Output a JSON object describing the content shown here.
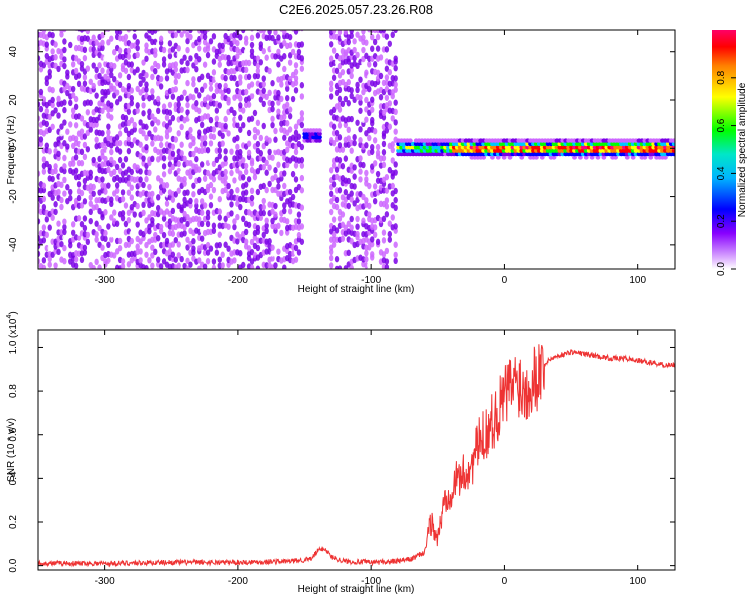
{
  "page": {
    "title": "C2E6.2025.057.23.26.R08"
  },
  "chart_data": [
    {
      "type": "heatmap",
      "xlabel": "Height of straight line (km)",
      "ylabel": "Frequency (Hz)",
      "xlim": [
        -350,
        128
      ],
      "ylim": [
        -50,
        49
      ],
      "xticks": [
        -300,
        -200,
        -100,
        0,
        100
      ],
      "yticks": [
        -40,
        -20,
        0,
        20,
        40
      ],
      "colorbar": {
        "label": "Normalized spectral amplitude",
        "range": [
          0.0,
          1.0
        ],
        "ticks": [
          0.0,
          0.2,
          0.4,
          0.6,
          0.8
        ],
        "colormap": "rainbow",
        "colors": [
          "#ffffff",
          "#cc66ff",
          "#7a00e6",
          "#0000ff",
          "#00c8ff",
          "#00ff00",
          "#ffff00",
          "#ff8000",
          "#ff0000",
          "#ff0080"
        ]
      },
      "regions": [
        {
          "x": [
            -350,
            -150
          ],
          "description_level": 0.1
        },
        {
          "x": [
            -150,
            -138
          ],
          "peak_freq": 5,
          "level": 0.35
        },
        {
          "x": [
            -132,
            -80
          ],
          "description_level": 0.1
        },
        {
          "x": [
            -80,
            -40
          ],
          "peak_freq": 0,
          "level": 0.6
        },
        {
          "x": [
            -40,
            128
          ],
          "peak_freq": 0,
          "level": 0.9
        }
      ],
      "grid": false
    },
    {
      "type": "line",
      "xlabel": "Height of straight line (km)",
      "ylabel": "SNR (10 * v/v)",
      "yscale_label": "(x10",
      "yscale_exp": "4",
      "xlim": [
        -350,
        128
      ],
      "ylim": [
        -0.02,
        1.08
      ],
      "xticks": [
        -300,
        -200,
        -100,
        0,
        100
      ],
      "yticks": [
        0.0,
        0.2,
        0.4,
        0.6,
        0.8,
        1.0
      ],
      "color": "#ee3333",
      "series": [
        {
          "x": [
            -350,
            -300,
            -250,
            -200,
            -160,
            -145,
            -140,
            -135,
            -130,
            -120,
            -100,
            -80,
            -70,
            -60,
            -55,
            -50,
            -45,
            -40,
            -35,
            -30,
            -25,
            -20,
            -15,
            -10,
            -5,
            0,
            5,
            10,
            15,
            20,
            25,
            30,
            35,
            40,
            45,
            50,
            60,
            70,
            80,
            90,
            100,
            110,
            120,
            128
          ],
          "values": [
            0.01,
            0.01,
            0.015,
            0.015,
            0.02,
            0.03,
            0.07,
            0.08,
            0.04,
            0.02,
            0.015,
            0.02,
            0.03,
            0.06,
            0.2,
            0.12,
            0.3,
            0.35,
            0.4,
            0.42,
            0.45,
            0.55,
            0.6,
            0.65,
            0.7,
            0.78,
            0.82,
            0.85,
            0.8,
            0.85,
            0.88,
            0.92,
            0.95,
            0.96,
            0.97,
            0.98,
            0.97,
            0.96,
            0.95,
            0.95,
            0.94,
            0.93,
            0.92,
            0.92
          ]
        }
      ],
      "grid": false
    }
  ]
}
